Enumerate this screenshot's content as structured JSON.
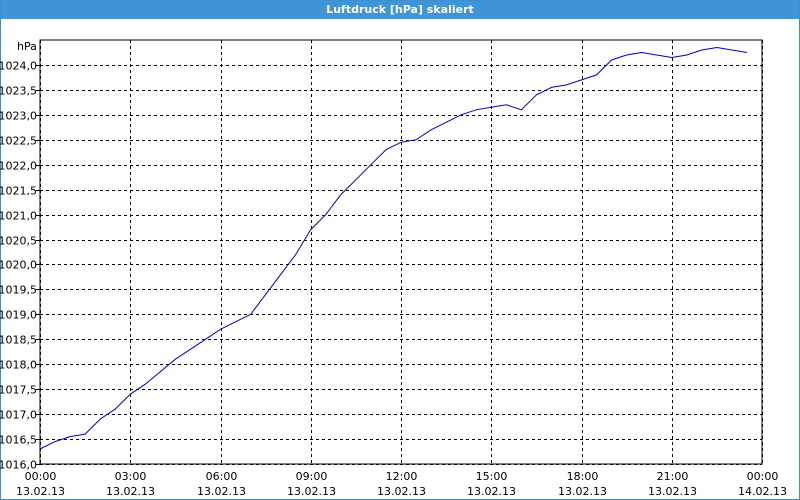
{
  "window": {
    "title": "Luftdruck [hPa] skaliert"
  },
  "chart_data": {
    "type": "line",
    "title": "Luftdruck [hPa] skaliert",
    "ylabel": "hPa",
    "ylim": [
      1016.0,
      1024.5
    ],
    "xlim": [
      "13.02.13 00:00",
      "14.02.13 00:00"
    ],
    "grid": true,
    "y_ticks": [
      "1016,0",
      "1016,5",
      "1017,0",
      "1017,5",
      "1018,0",
      "1018,5",
      "1019,0",
      "1019,5",
      "1020,0",
      "1020,5",
      "1021,0",
      "1021,5",
      "1022,0",
      "1022,5",
      "1023,0",
      "1023,5",
      "1024,0"
    ],
    "x_ticks": [
      {
        "time": "00:00",
        "date": "13.02.13"
      },
      {
        "time": "03:00",
        "date": "13.02.13"
      },
      {
        "time": "06:00",
        "date": "13.02.13"
      },
      {
        "time": "09:00",
        "date": "13.02.13"
      },
      {
        "time": "12:00",
        "date": "13.02.13"
      },
      {
        "time": "15:00",
        "date": "13.02.13"
      },
      {
        "time": "18:00",
        "date": "13.02.13"
      },
      {
        "time": "21:00",
        "date": "13.02.13"
      },
      {
        "time": "00:00",
        "date": "14.02.13"
      }
    ],
    "series": [
      {
        "color": "#0000c0",
        "x": [
          "13.02.13 00:00",
          "13.02.13 00:30",
          "13.02.13 01:00",
          "13.02.13 01:30",
          "13.02.13 02:00",
          "13.02.13 02:30",
          "13.02.13 03:00",
          "13.02.13 03:30",
          "13.02.13 04:00",
          "13.02.13 04:30",
          "13.02.13 05:00",
          "13.02.13 05:30",
          "13.02.13 06:00",
          "13.02.13 06:30",
          "13.02.13 07:00",
          "13.02.13 07:30",
          "13.02.13 08:00",
          "13.02.13 08:30",
          "13.02.13 09:00",
          "13.02.13 09:30",
          "13.02.13 10:00",
          "13.02.13 10:30",
          "13.02.13 11:00",
          "13.02.13 11:30",
          "13.02.13 12:00",
          "13.02.13 12:30",
          "13.02.13 13:00",
          "13.02.13 13:30",
          "13.02.13 14:00",
          "13.02.13 14:30",
          "13.02.13 15:00",
          "13.02.13 15:30",
          "13.02.13 16:00",
          "13.02.13 16:30",
          "13.02.13 17:00",
          "13.02.13 17:30",
          "13.02.13 18:00",
          "13.02.13 18:30",
          "13.02.13 19:00",
          "13.02.13 19:30",
          "13.02.13 20:00",
          "13.02.13 20:30",
          "13.02.13 21:00",
          "13.02.13 21:30",
          "13.02.13 22:00",
          "13.02.13 22:30",
          "13.02.13 23:00",
          "13.02.13 23:30"
        ],
        "values": [
          1016.3,
          1016.45,
          1016.55,
          1016.6,
          1016.9,
          1017.1,
          1017.4,
          1017.6,
          1017.85,
          1018.1,
          1018.3,
          1018.5,
          1018.7,
          1018.85,
          1019.0,
          1019.4,
          1019.8,
          1020.2,
          1020.7,
          1021.0,
          1021.4,
          1021.7,
          1022.0,
          1022.3,
          1022.45,
          1022.5,
          1022.7,
          1022.85,
          1023.0,
          1023.1,
          1023.15,
          1023.2,
          1023.1,
          1023.4,
          1023.55,
          1023.6,
          1023.7,
          1023.8,
          1024.1,
          1024.2,
          1024.25,
          1024.2,
          1024.15,
          1024.2,
          1024.3,
          1024.35,
          1024.3,
          1024.25
        ]
      }
    ]
  }
}
